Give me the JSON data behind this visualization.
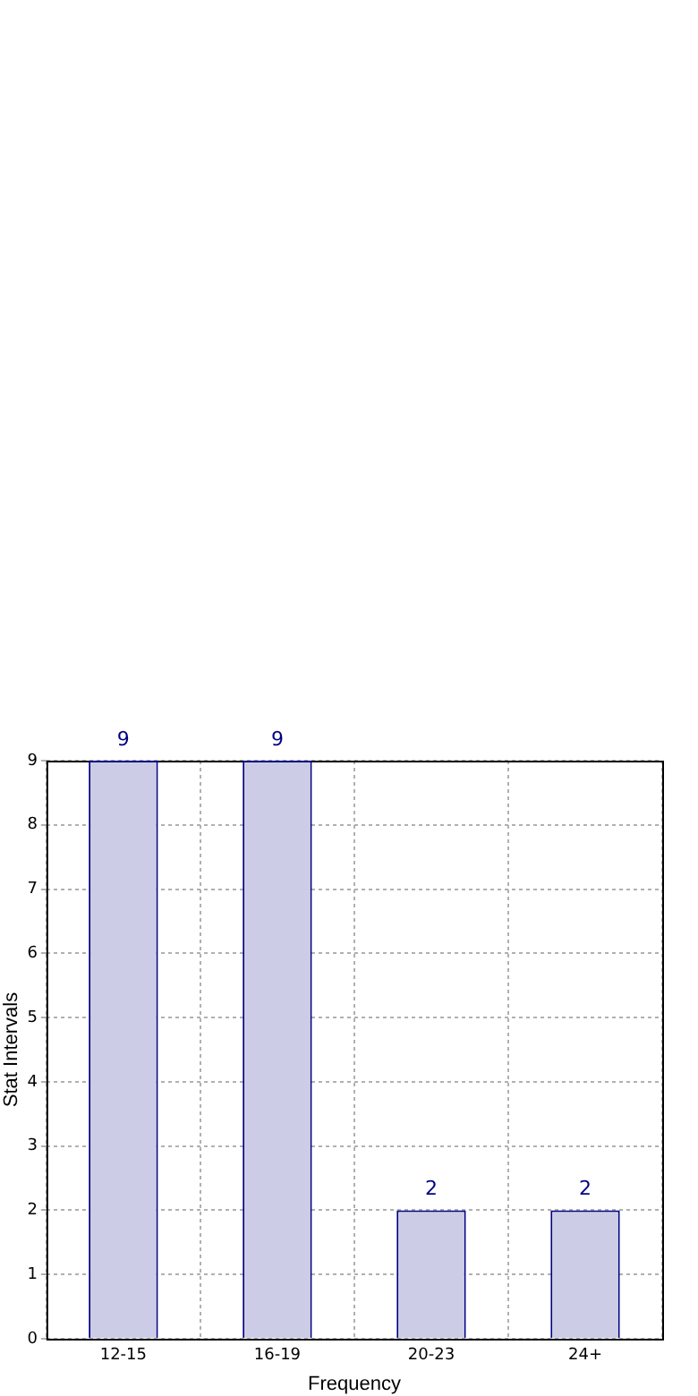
{
  "chart_data": {
    "type": "bar",
    "xlabel": "Frequency",
    "ylabel": "Stat Intervals",
    "categories": [
      "12-15",
      "16-19",
      "20-23",
      "24+"
    ],
    "values": [
      9,
      9,
      2,
      2
    ],
    "color": "#cccce6",
    "ylim": [
      0,
      9
    ],
    "yticks": [
      0,
      1,
      2,
      3,
      4,
      5,
      6,
      7,
      8,
      9
    ],
    "grid": true,
    "data_labels": true,
    "legend": false
  }
}
